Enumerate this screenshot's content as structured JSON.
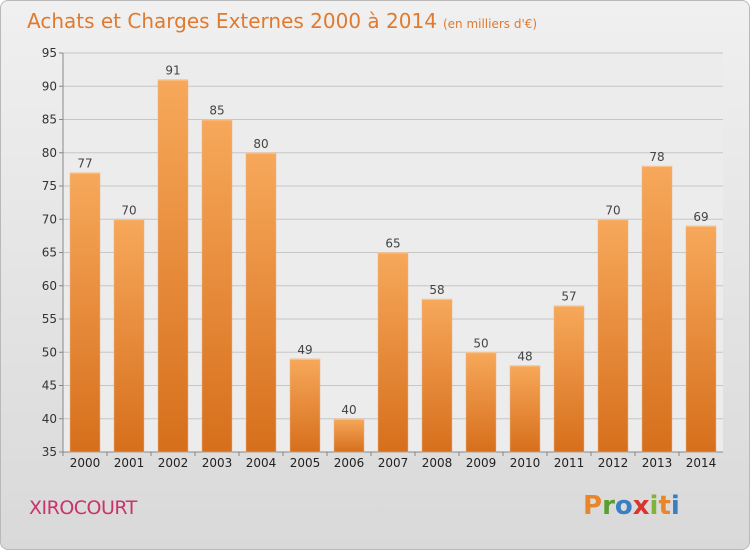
{
  "title": "Achats et Charges Externes 2000 à 2014",
  "unit": "(en milliers d'€)",
  "commune": "XIROCOURT",
  "logo": "Proxiti",
  "colors": {
    "title": "#e07a2f",
    "commune": "#c8336a",
    "bar_light": "#f7a85a",
    "bar_dark": "#d66f1c",
    "logo_P": "#e8862b",
    "logo_r": "#5a9e2f",
    "logo_o": "#3a7fc4",
    "logo_x": "#d8352e",
    "logo_i": "#7fb33a",
    "logo_t": "#e8862b",
    "logo_i2": "#3a7fc4"
  },
  "chart_data": {
    "type": "bar",
    "categories": [
      "2000",
      "2001",
      "2002",
      "2003",
      "2004",
      "2005",
      "2006",
      "2007",
      "2008",
      "2009",
      "2010",
      "2011",
      "2012",
      "2013",
      "2014"
    ],
    "values": [
      77,
      70,
      91,
      85,
      80,
      49,
      40,
      65,
      58,
      50,
      48,
      57,
      70,
      78,
      69
    ],
    "ylim": [
      35,
      95
    ],
    "yticks": [
      35,
      40,
      45,
      50,
      55,
      60,
      65,
      70,
      75,
      80,
      85,
      90,
      95
    ],
    "grid": true,
    "legend": "none"
  }
}
